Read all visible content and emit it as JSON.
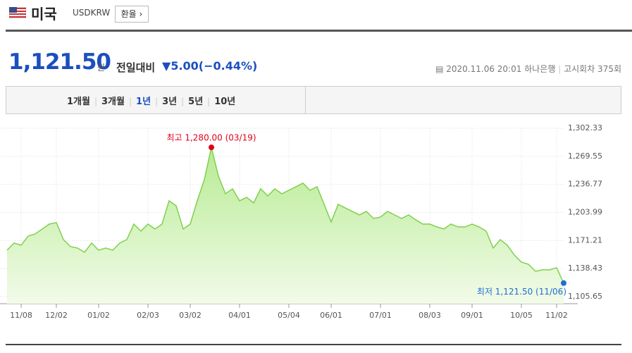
{
  "header": {
    "country": "미국",
    "code": "USDKRW",
    "button": "환율"
  },
  "quote": {
    "price": "1,121.50",
    "unit": "원",
    "change_label": "전일대비",
    "change": "5.00",
    "change_pct": "(−0.44%)",
    "datetime": "2020.11.06 20:01",
    "bank": "하나은행",
    "round": "고시회차 375회"
  },
  "tabs": [
    "1개월",
    "3개월",
    "1년",
    "3년",
    "5년",
    "10년"
  ],
  "selected_tab": 2,
  "chart_data": {
    "type": "area",
    "color": "#7fd04e",
    "grid": true,
    "categories": [
      null,
      null,
      "11/08",
      null,
      null,
      null,
      null,
      "12/02",
      null,
      null,
      null,
      null,
      null,
      "01/02",
      null,
      null,
      null,
      null,
      null,
      null,
      "02/03",
      null,
      null,
      null,
      null,
      null,
      "03/02",
      null,
      null,
      null,
      null,
      null,
      null,
      "04/01",
      null,
      null,
      null,
      null,
      null,
      null,
      "05/04",
      null,
      null,
      null,
      null,
      null,
      "06/01",
      null,
      null,
      null,
      null,
      null,
      null,
      "07/01",
      null,
      null,
      null,
      null,
      null,
      null,
      "08/03",
      null,
      null,
      null,
      null,
      null,
      "09/01",
      null,
      null,
      null,
      null,
      null,
      null,
      "10/05",
      null,
      null,
      null,
      null,
      "11/02",
      null
    ],
    "values": [
      1159.9,
      1168.2,
      1165.7,
      1176.4,
      1178.9,
      1184.7,
      1190.4,
      1192.1,
      1172.3,
      1164.1,
      1162.4,
      1157.5,
      1168.2,
      1159.9,
      1162.4,
      1159.9,
      1168.2,
      1172.3,
      1190.4,
      1182.2,
      1190.4,
      1184.7,
      1190.4,
      1217.6,
      1211.8,
      1184.7,
      1190.4,
      1217.6,
      1242.3,
      1280.0,
      1246.4,
      1225.8,
      1231.6,
      1217.6,
      1221.7,
      1215.1,
      1231.6,
      1223.3,
      1231.6,
      1225.8,
      1229.9,
      1234.0,
      1238.2,
      1229.9,
      1234.0,
      1213.5,
      1192.9,
      1213.5,
      1209.3,
      1205.2,
      1201.1,
      1205.2,
      1197.0,
      1198.6,
      1205.2,
      1201.1,
      1197.0,
      1201.1,
      1195.4,
      1190.4,
      1190.4,
      1187.1,
      1184.7,
      1190.4,
      1187.1,
      1187.1,
      1190.4,
      1187.1,
      1182.2,
      1162.4,
      1172.3,
      1165.7,
      1154.2,
      1146.0,
      1143.5,
      1135.3,
      1136.9,
      1136.9,
      1139.4,
      1121.5
    ],
    "ylim": [
      1105.65,
      1302.33
    ],
    "yticks": [
      {
        "value": 1105.65,
        "label": "1,105.65"
      },
      {
        "value": 1138.43,
        "label": "1,138.43"
      },
      {
        "value": 1171.21,
        "label": "1,171.21"
      },
      {
        "value": 1203.99,
        "label": "1,203.99"
      },
      {
        "value": 1236.77,
        "label": "1,236.77"
      },
      {
        "value": 1269.55,
        "label": "1,269.55"
      },
      {
        "value": 1302.33,
        "label": "1,302.33"
      }
    ],
    "annotations": [
      {
        "label": "최고 1,280.00 (03/19)",
        "color": "#e0001a"
      },
      {
        "label": "최저 1,121.50 (11/06)",
        "color": "#1f6fd1"
      }
    ]
  }
}
